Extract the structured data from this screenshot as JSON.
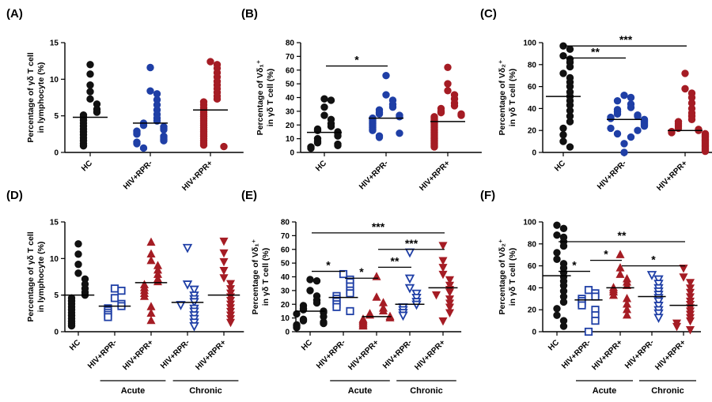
{
  "colors": {
    "hc": "#111111",
    "blue": "#1f3fa6",
    "red": "#a51c24",
    "axis": "#000000"
  },
  "chart_data": [
    {
      "id": "A",
      "panel_label": "(A)",
      "type": "scatter",
      "ylabel_lines": [
        "Percentage of γδ T cell",
        "in lymphocyte (%)"
      ],
      "ylim": [
        0,
        15
      ],
      "yticks": [
        0,
        5,
        10,
        15
      ],
      "categories": [
        "HC",
        "HIV+RPR-",
        "HIV+RPR+"
      ],
      "groups": [],
      "series": [
        {
          "name": "HC",
          "marker": "circle",
          "filled": true,
          "color": "#111111",
          "mean": 4.8,
          "values": [
            12.0,
            10.7,
            9.2,
            8.3,
            7.3,
            6.6,
            5.9,
            5.5,
            5.1,
            4.8,
            4.4,
            4.0,
            3.6,
            3.2,
            2.8,
            2.4,
            2.0,
            1.6,
            1.2,
            0.9
          ]
        },
        {
          "name": "HIV+RPR-",
          "marker": "circle",
          "filled": true,
          "color": "#1f3fa6",
          "mean": 4.0,
          "values": [
            11.6,
            8.4,
            8.0,
            7.2,
            6.5,
            5.8,
            5.2,
            4.7,
            4.3,
            4.0,
            3.7,
            3.5,
            3.3,
            3.1,
            2.9,
            2.7,
            2.5,
            2.2,
            2.0,
            1.8,
            1.6,
            1.4,
            1.2,
            0.6
          ]
        },
        {
          "name": "HIV+RPR+",
          "marker": "circle",
          "filled": true,
          "color": "#a51c24",
          "mean": 5.8,
          "values": [
            12.4,
            12.0,
            11.5,
            10.9,
            10.3,
            9.7,
            9.2,
            8.7,
            8.2,
            7.7,
            7.3,
            6.9,
            6.5,
            6.1,
            5.8,
            5.5,
            5.2,
            4.9,
            4.6,
            4.3,
            4.0,
            3.7,
            3.4,
            3.1,
            2.8,
            2.5,
            2.2,
            1.9,
            1.6,
            1.3,
            1.0,
            0.8
          ]
        }
      ],
      "significance": []
    },
    {
      "id": "B",
      "panel_label": "(B)",
      "type": "scatter",
      "ylabel_lines": [
        "Percentage of Vδ₁⁺",
        "in γδ T cell (%)"
      ],
      "ylim": [
        0,
        80
      ],
      "yticks": [
        0,
        10,
        20,
        30,
        40,
        50,
        60,
        70,
        80
      ],
      "categories": [
        "HC",
        "HIV+RPR-",
        "HIV+RPR+"
      ],
      "groups": [],
      "series": [
        {
          "name": "HC",
          "marker": "circle",
          "filled": true,
          "color": "#111111",
          "mean": 14.6,
          "values": [
            39,
            38,
            33,
            27,
            24,
            21,
            19,
            17,
            16,
            15,
            14,
            12,
            10,
            8,
            7,
            6,
            5,
            4,
            3
          ]
        },
        {
          "name": "HIV+RPR-",
          "marker": "circle",
          "filled": true,
          "color": "#1f3fa6",
          "mean": 25,
          "values": [
            56,
            42,
            38,
            35,
            33,
            31,
            29,
            28,
            27,
            26,
            25,
            24,
            23,
            22,
            21,
            20,
            19,
            18,
            17,
            16,
            14,
            12,
            11
          ]
        },
        {
          "name": "HIV+RPR+",
          "marker": "circle",
          "filled": true,
          "color": "#a51c24",
          "mean": 22.5,
          "values": [
            62,
            50,
            45,
            42,
            39,
            36,
            34,
            32,
            30,
            29,
            28,
            27,
            26,
            25,
            24,
            23,
            22,
            21,
            20,
            19,
            18,
            17,
            16,
            15,
            14,
            13,
            12,
            11,
            10,
            9,
            8,
            7,
            6,
            5,
            4
          ]
        }
      ],
      "significance": [
        {
          "from": 0,
          "to": 1,
          "y": 63,
          "label": "*"
        }
      ]
    },
    {
      "id": "C",
      "panel_label": "(C)",
      "type": "scatter",
      "ylabel_lines": [
        "Percentage of Vδ₂⁺",
        "in γδ T cell (%)"
      ],
      "ylim": [
        0,
        100
      ],
      "yticks": [
        0,
        20,
        40,
        60,
        80,
        100
      ],
      "categories": [
        "HC",
        "HIV+RPR-",
        "HIV+RPR+"
      ],
      "groups": [],
      "series": [
        {
          "name": "HC",
          "marker": "circle",
          "filled": true,
          "color": "#111111",
          "mean": 51,
          "values": [
            97,
            94,
            88,
            85,
            82,
            78,
            72,
            68,
            64,
            60,
            55,
            51,
            47,
            43,
            38,
            33,
            28,
            22,
            16,
            10,
            5
          ]
        },
        {
          "name": "HIV+RPR-",
          "marker": "circle",
          "filled": true,
          "color": "#1f3fa6",
          "mean": 30,
          "values": [
            52,
            50,
            47,
            44,
            41,
            39,
            37,
            35,
            34,
            33,
            32,
            31,
            30,
            29,
            28,
            27,
            26,
            25,
            24,
            22,
            20,
            17,
            14,
            8,
            0
          ]
        },
        {
          "name": "HIV+RPR+",
          "marker": "circle",
          "filled": true,
          "color": "#a51c24",
          "mean": 20,
          "values": [
            72,
            58,
            54,
            50,
            45,
            40,
            36,
            33,
            30,
            28,
            26,
            24,
            22,
            21,
            20,
            19,
            18,
            17,
            16,
            15,
            14,
            13,
            12,
            11,
            10,
            9,
            8,
            7,
            6,
            5,
            4,
            3,
            2,
            1
          ]
        }
      ],
      "significance": [
        {
          "from": 0,
          "to": 2,
          "y": 97,
          "label": "***"
        },
        {
          "from": 0,
          "to": 1,
          "y": 86,
          "label": "**"
        }
      ]
    },
    {
      "id": "D",
      "panel_label": "(D)",
      "type": "scatter",
      "ylabel_lines": [
        "Percentage of γδ T cell",
        "in lymphocyte (%)"
      ],
      "ylim": [
        0,
        15
      ],
      "yticks": [
        0,
        5,
        10,
        15
      ],
      "categories": [
        "HC",
        "HIV+RPR-",
        "HIV+RPR+",
        "HIV+RPR-",
        "HIV+RPR+"
      ],
      "groups": [
        {
          "label": "Acute",
          "from": 1,
          "to": 2
        },
        {
          "label": "Chronic",
          "from": 3,
          "to": 4
        }
      ],
      "series": [
        {
          "name": "HC",
          "marker": "circle",
          "filled": true,
          "color": "#111111",
          "mean": 5.0,
          "values": [
            12.0,
            10.6,
            9.2,
            8.0,
            7.2,
            6.5,
            5.9,
            5.4,
            5.0,
            4.6,
            4.2,
            3.8,
            3.4,
            3.0,
            2.6,
            2.2,
            1.8,
            1.4,
            1.1,
            0.8
          ]
        },
        {
          "name": "HIV+RPR-",
          "marker": "square",
          "filled": false,
          "color": "#1f3fa6",
          "mean": 3.5,
          "values": [
            5.9,
            5.6,
            4.6,
            3.8,
            3.5,
            3.2,
            2.9,
            2.6,
            2.3,
            2.0
          ]
        },
        {
          "name": "HIV+RPR+",
          "marker": "triangle-up",
          "filled": true,
          "color": "#a51c24",
          "mean": 6.7,
          "values": [
            12.2,
            10.6,
            9.7,
            9.0,
            8.4,
            7.8,
            7.2,
            6.8,
            6.4,
            6.0,
            5.6,
            5.2,
            4.8,
            3.4,
            2.5,
            1.5
          ]
        },
        {
          "name": "HIV+RPR-",
          "marker": "triangle-down",
          "filled": false,
          "color": "#1f3fa6",
          "mean": 4.0,
          "values": [
            11.5,
            6.5,
            5.8,
            5.0,
            4.5,
            4.1,
            3.7,
            3.2,
            2.8,
            2.3,
            1.8,
            1.3,
            0.8
          ]
        },
        {
          "name": "HIV+RPR+",
          "marker": "triangle-down",
          "filled": true,
          "color": "#a51c24",
          "mean": 5.0,
          "values": [
            12.4,
            10.8,
            9.6,
            8.4,
            7.4,
            6.6,
            5.9,
            5.3,
            4.8,
            4.3,
            3.8,
            3.3,
            2.8,
            2.3,
            1.8,
            1.3
          ]
        }
      ],
      "significance": []
    },
    {
      "id": "E",
      "panel_label": "(E)",
      "type": "scatter",
      "ylabel_lines": [
        "Percentage of Vδ₁⁺",
        "in γδ T cell (%)"
      ],
      "ylim": [
        0,
        80
      ],
      "yticks": [
        0,
        10,
        20,
        30,
        40,
        50,
        60,
        70,
        80
      ],
      "categories": [
        "HC",
        "HIV+RPR-",
        "HIV+RPR+",
        "HIV+RPR-",
        "HIV+RPR+"
      ],
      "groups": [
        {
          "label": "Acute",
          "from": 1,
          "to": 2
        },
        {
          "label": "Chronic",
          "from": 3,
          "to": 4
        }
      ],
      "series": [
        {
          "name": "HC",
          "marker": "circle",
          "filled": true,
          "color": "#111111",
          "mean": 15,
          "values": [
            38,
            37,
            30,
            26,
            23,
            21,
            19,
            17,
            16,
            15,
            14,
            13,
            11,
            9,
            8,
            7,
            6,
            5,
            4,
            3
          ]
        },
        {
          "name": "HIV+RPR-",
          "marker": "square",
          "filled": false,
          "color": "#1f3fa6",
          "mean": 25,
          "values": [
            42,
            38,
            36,
            33,
            30,
            28,
            26,
            24,
            22,
            20,
            18,
            15
          ]
        },
        {
          "name": "HIV+RPR+",
          "marker": "triangle-up",
          "filled": true,
          "color": "#a51c24",
          "mean": 11,
          "values": [
            40,
            25,
            21,
            17,
            15,
            13,
            12,
            11,
            10,
            9,
            8,
            7,
            6,
            5,
            4
          ]
        },
        {
          "name": "HIV+RPR-",
          "marker": "triangle-down",
          "filled": false,
          "color": "#1f3fa6",
          "mean": 20,
          "values": [
            58,
            39,
            32,
            28,
            25,
            22,
            20,
            18,
            16,
            14,
            12
          ]
        },
        {
          "name": "HIV+RPR+",
          "marker": "triangle-down",
          "filled": true,
          "color": "#a51c24",
          "mean": 32,
          "values": [
            63,
            52,
            47,
            42,
            38,
            34,
            31,
            29,
            27,
            24,
            21,
            18,
            14,
            8
          ]
        }
      ],
      "significance": [
        {
          "from": 0,
          "to": 4,
          "y": 72,
          "label": "***"
        },
        {
          "from": 2,
          "to": 4,
          "y": 60,
          "label": "***"
        },
        {
          "from": 2,
          "to": 3,
          "y": 47,
          "label": "**"
        },
        {
          "from": 0,
          "to": 1,
          "y": 44,
          "label": "*"
        },
        {
          "from": 1,
          "to": 2,
          "y": 39,
          "label": "*"
        }
      ]
    },
    {
      "id": "F",
      "panel_label": "(F)",
      "type": "scatter",
      "ylabel_lines": [
        "Percentage of Vδ₂⁺",
        "in γδ T cell (%)"
      ],
      "ylim": [
        0,
        100
      ],
      "yticks": [
        0,
        20,
        40,
        60,
        80,
        100
      ],
      "categories": [
        "HC",
        "HIV+RPR-",
        "HIV+RPR+",
        "HIV+RPR-",
        "HIV+RPR+"
      ],
      "groups": [
        {
          "label": "Acute",
          "from": 1,
          "to": 2
        },
        {
          "label": "Chronic",
          "from": 3,
          "to": 4
        }
      ],
      "series": [
        {
          "name": "HC",
          "marker": "circle",
          "filled": true,
          "color": "#111111",
          "mean": 51,
          "values": [
            97,
            94,
            88,
            86,
            82,
            78,
            72,
            66,
            62,
            58,
            54,
            50,
            46,
            42,
            37,
            32,
            27,
            21,
            15,
            10,
            5
          ]
        },
        {
          "name": "HIV+RPR-",
          "marker": "square",
          "filled": false,
          "color": "#1f3fa6",
          "mean": 29,
          "values": [
            38,
            35,
            32,
            30,
            28,
            26,
            24,
            20,
            15,
            10,
            0
          ]
        },
        {
          "name": "HIV+RPR+",
          "marker": "triangle-up",
          "filled": true,
          "color": "#a51c24",
          "mean": 40,
          "values": [
            70,
            58,
            52,
            48,
            45,
            42,
            40,
            38,
            36,
            33,
            30,
            25,
            20,
            15
          ]
        },
        {
          "name": "HIV+RPR-",
          "marker": "triangle-down",
          "filled": false,
          "color": "#1f3fa6",
          "mean": 32,
          "values": [
            52,
            48,
            44,
            40,
            37,
            34,
            31,
            28,
            24,
            20,
            17,
            13
          ]
        },
        {
          "name": "HIV+RPR+",
          "marker": "triangle-down",
          "filled": true,
          "color": "#a51c24",
          "mean": 24,
          "values": [
            58,
            50,
            45,
            40,
            36,
            32,
            28,
            25,
            22,
            19,
            16,
            13,
            10,
            8,
            5,
            2
          ]
        }
      ],
      "significance": [
        {
          "from": 0,
          "to": 4,
          "y": 82,
          "label": "**"
        },
        {
          "from": 2,
          "to": 4,
          "y": 60,
          "label": "*"
        },
        {
          "from": 1,
          "to": 2,
          "y": 65,
          "label": "*"
        },
        {
          "from": 0,
          "to": 1,
          "y": 55,
          "label": "*"
        }
      ]
    }
  ]
}
